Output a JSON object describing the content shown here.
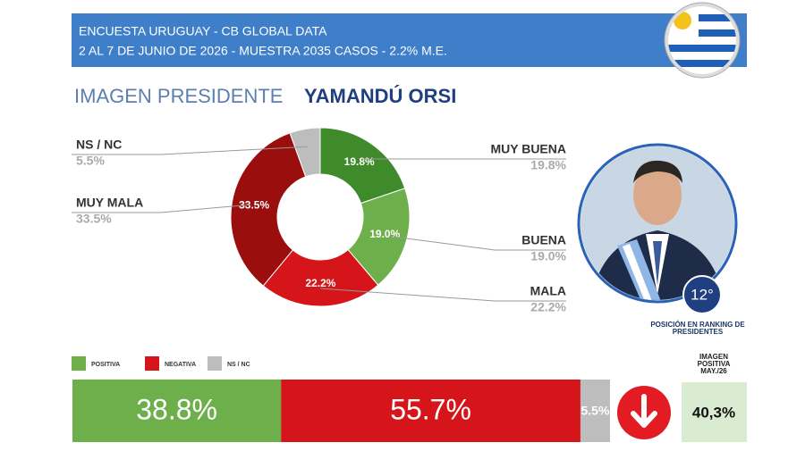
{
  "header": {
    "line1": "ENCUESTA URUGUAY - CB GLOBAL DATA",
    "line2": "2 AL 7 DE JUNIO DE 2026 - MUESTRA 2035 CASOS - 2.2% M.E."
  },
  "title": {
    "label": "IMAGEN PRESIDENTE",
    "name": "YAMANDÚ ORSI"
  },
  "ranking": {
    "position": "12°",
    "caption": "POSICIÓN EN RANKING DE PRESIDENTES"
  },
  "previous": {
    "label": "IMAGEN POSITIVA MAY./26",
    "value": "40,3%"
  },
  "chart_data": [
    {
      "type": "pie",
      "donut": true,
      "categories": [
        "MUY BUENA",
        "BUENA",
        "MALA",
        "MUY MALA",
        "NS / NC"
      ],
      "values": [
        19.8,
        19.0,
        22.2,
        33.5,
        5.5
      ],
      "value_labels": [
        "19.8%",
        "19.0%",
        "22.2%",
        "33.5%",
        "5.5%"
      ],
      "colors": [
        "#3f8a2b",
        "#6db04b",
        "#d51519",
        "#9a0e0e",
        "#bdbdbd"
      ]
    },
    {
      "type": "stacked-bar",
      "orientation": "horizontal",
      "categories": [
        null
      ],
      "xlim": [
        0,
        100
      ],
      "series": [
        {
          "name": "POSITIVA",
          "color": "#6db04b",
          "values": [
            38.8
          ],
          "value_labels": [
            "38.8%"
          ]
        },
        {
          "name": "NEGATIVA",
          "color": "#d51519",
          "values": [
            55.7
          ],
          "value_labels": [
            "55.7%"
          ]
        },
        {
          "name": "NS / NC",
          "color": "#bdbdbd",
          "values": [
            5.5
          ],
          "value_labels": [
            "5.5%"
          ]
        }
      ]
    }
  ]
}
